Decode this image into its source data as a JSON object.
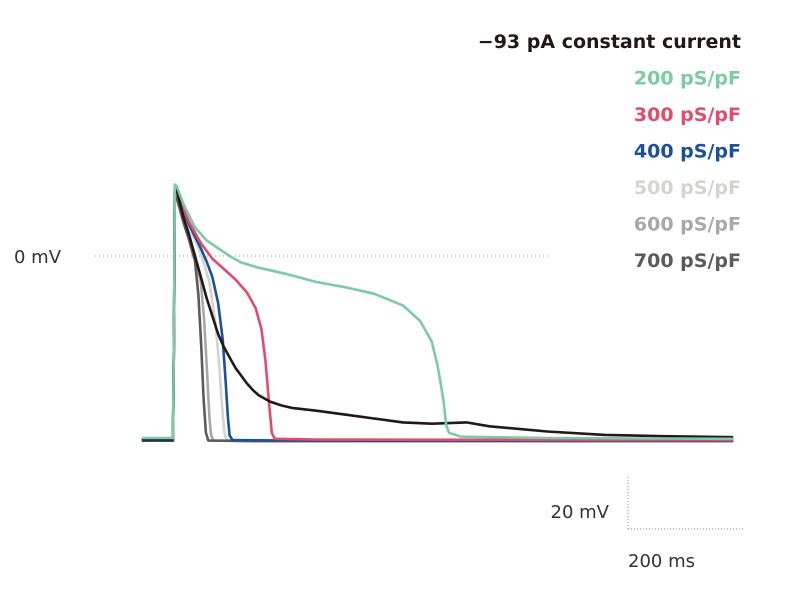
{
  "chart_data": {
    "type": "line",
    "title": "",
    "xlabel": "",
    "ylabel": "",
    "reference_line": {
      "label": "0 mV",
      "value_mv": 0
    },
    "scale_bar": {
      "voltage_label": "20 mV",
      "time_label": "200 ms",
      "voltage_mv": 20,
      "time_ms": 200
    },
    "legend_position": "top-right",
    "xlim_ms": [
      0,
      1020
    ],
    "ylim_mv": [
      -80,
      38
    ],
    "series": [
      {
        "name": "−93 pA constant current",
        "color": "#231816",
        "points": [
          [
            0,
            -70.5
          ],
          [
            50,
            -70.5
          ],
          [
            52,
            -70
          ],
          [
            54,
            -20
          ],
          [
            55,
            27
          ],
          [
            57,
            27
          ],
          [
            70,
            15
          ],
          [
            80,
            8
          ],
          [
            90,
            0
          ],
          [
            100,
            -8
          ],
          [
            110,
            -16
          ],
          [
            120,
            -23
          ],
          [
            130,
            -30
          ],
          [
            140,
            -35
          ],
          [
            150,
            -39
          ],
          [
            160,
            -43
          ],
          [
            170,
            -46
          ],
          [
            180,
            -49
          ],
          [
            190,
            -51.5
          ],
          [
            200,
            -53.5
          ],
          [
            220,
            -56
          ],
          [
            240,
            -57.5
          ],
          [
            260,
            -58.5
          ],
          [
            300,
            -59.5
          ],
          [
            350,
            -61
          ],
          [
            400,
            -62.5
          ],
          [
            450,
            -64
          ],
          [
            500,
            -64.5
          ],
          [
            560,
            -64
          ],
          [
            600,
            -65.5
          ],
          [
            700,
            -67.5
          ],
          [
            800,
            -68.8
          ],
          [
            900,
            -69.3
          ],
          [
            1020,
            -69.7
          ]
        ]
      },
      {
        "name": "200 pS/pF",
        "color": "#7ccba2",
        "points": [
          [
            0,
            -70
          ],
          [
            50,
            -70
          ],
          [
            52,
            -70
          ],
          [
            54,
            -20
          ],
          [
            55,
            27.5
          ],
          [
            58,
            27
          ],
          [
            70,
            20
          ],
          [
            90,
            11
          ],
          [
            110,
            6
          ],
          [
            130,
            3
          ],
          [
            150,
            0
          ],
          [
            170,
            -2.5
          ],
          [
            200,
            -4.5
          ],
          [
            250,
            -7
          ],
          [
            300,
            -10
          ],
          [
            350,
            -12
          ],
          [
            400,
            -14.5
          ],
          [
            450,
            -19
          ],
          [
            480,
            -25
          ],
          [
            500,
            -33
          ],
          [
            510,
            -42
          ],
          [
            520,
            -55
          ],
          [
            525,
            -65
          ],
          [
            530,
            -68
          ],
          [
            550,
            -69.5
          ],
          [
            700,
            -70
          ],
          [
            1020,
            -70.3
          ]
        ]
      },
      {
        "name": "300 pS/pF",
        "color": "#e34b6d",
        "points": [
          [
            0,
            -70.5
          ],
          [
            50,
            -70.5
          ],
          [
            52,
            -70.5
          ],
          [
            54,
            -20
          ],
          [
            55,
            27
          ],
          [
            60,
            23
          ],
          [
            80,
            13
          ],
          [
            100,
            5
          ],
          [
            120,
            -1
          ],
          [
            140,
            -5
          ],
          [
            160,
            -9
          ],
          [
            180,
            -14
          ],
          [
            195,
            -20
          ],
          [
            205,
            -28
          ],
          [
            212,
            -40
          ],
          [
            218,
            -56
          ],
          [
            223,
            -68
          ],
          [
            228,
            -70.3
          ],
          [
            300,
            -70.6
          ],
          [
            1020,
            -70.8
          ]
        ]
      },
      {
        "name": "400 pS/pF",
        "color": "#1c4f9c",
        "points": [
          [
            0,
            -71
          ],
          [
            50,
            -71
          ],
          [
            52,
            -71
          ],
          [
            54,
            -20
          ],
          [
            55,
            27
          ],
          [
            60,
            23
          ],
          [
            80,
            12
          ],
          [
            100,
            3
          ],
          [
            110,
            -2
          ],
          [
            120,
            -8
          ],
          [
            130,
            -18
          ],
          [
            138,
            -32
          ],
          [
            143,
            -48
          ],
          [
            147,
            -62
          ],
          [
            150,
            -69
          ],
          [
            155,
            -70.8
          ],
          [
            250,
            -71
          ],
          [
            1020,
            -71
          ]
        ]
      },
      {
        "name": "500 pS/pF",
        "color": "#d3d3d0",
        "points": [
          [
            0,
            -71
          ],
          [
            50,
            -71
          ],
          [
            52,
            -71
          ],
          [
            54,
            -20
          ],
          [
            55,
            27
          ],
          [
            60,
            22
          ],
          [
            80,
            11
          ],
          [
            100,
            1
          ],
          [
            115,
            -10
          ],
          [
            125,
            -25
          ],
          [
            132,
            -42
          ],
          [
            137,
            -58
          ],
          [
            141,
            -68
          ],
          [
            145,
            -70.8
          ],
          [
            200,
            -71
          ],
          [
            1020,
            -71
          ]
        ]
      },
      {
        "name": "600 pS/pF",
        "color": "#a8a8a8",
        "points": [
          [
            0,
            -71
          ],
          [
            50,
            -71
          ],
          [
            52,
            -71
          ],
          [
            54,
            -20
          ],
          [
            55,
            27
          ],
          [
            60,
            21
          ],
          [
            70,
            14
          ],
          [
            80,
            7
          ],
          [
            90,
            0
          ],
          [
            100,
            -10
          ],
          [
            106,
            -25
          ],
          [
            111,
            -45
          ],
          [
            115,
            -62
          ],
          [
            118,
            -69
          ],
          [
            122,
            -71
          ],
          [
            200,
            -71.2
          ],
          [
            1020,
            -71.2
          ]
        ]
      },
      {
        "name": "700 pS/pF",
        "color": "#5b5b5b",
        "points": [
          [
            0,
            -71
          ],
          [
            50,
            -71
          ],
          [
            52,
            -71
          ],
          [
            54,
            -20
          ],
          [
            55,
            27
          ],
          [
            60,
            21
          ],
          [
            70,
            13
          ],
          [
            80,
            6
          ],
          [
            90,
            -2
          ],
          [
            96,
            -15
          ],
          [
            101,
            -35
          ],
          [
            105,
            -55
          ],
          [
            109,
            -68
          ],
          [
            113,
            -71
          ],
          [
            200,
            -71.2
          ],
          [
            1020,
            -71.2
          ]
        ]
      }
    ]
  }
}
